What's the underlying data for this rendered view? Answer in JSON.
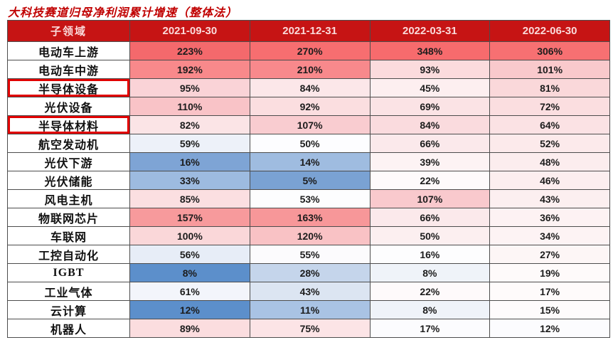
{
  "title": "大科技赛道归母净利润累计增速（整体法）",
  "colors": {
    "title_text": "#C00000",
    "header_bg": "#C61414",
    "header_text": "#FADADA",
    "grid_border": "#4d4d4d",
    "highlight_box": "#E10000",
    "scale_low": "#5A8AC6",
    "scale_mid": "#FCFCFF",
    "scale_high": "#F8696B"
  },
  "table": {
    "header": {
      "label_col": "子领域",
      "date_cols": [
        "2021-09-30",
        "2021-12-31",
        "2022-03-31",
        "2022-06-30"
      ]
    },
    "rows": [
      {
        "label": "电动车上游",
        "highlight": false,
        "cells": [
          {
            "v": "223%",
            "bg": "#F4696C"
          },
          {
            "v": "270%",
            "bg": "#F76E70"
          },
          {
            "v": "348%",
            "bg": "#F76B6D"
          },
          {
            "v": "306%",
            "bg": "#F77072"
          }
        ]
      },
      {
        "label": "电动车中游",
        "highlight": false,
        "cells": [
          {
            "v": "192%",
            "bg": "#F8898B"
          },
          {
            "v": "210%",
            "bg": "#F8898C"
          },
          {
            "v": "93%",
            "bg": "#FBDBDD"
          },
          {
            "v": "101%",
            "bg": "#F9C9CC"
          }
        ]
      },
      {
        "label": "半导体设备",
        "highlight": true,
        "cells": [
          {
            "v": "95%",
            "bg": "#FAD3D7"
          },
          {
            "v": "84%",
            "bg": "#FCE7E9"
          },
          {
            "v": "45%",
            "bg": "#FDEFF0"
          },
          {
            "v": "81%",
            "bg": "#FAD8DA"
          }
        ]
      },
      {
        "label": "光伏设备",
        "highlight": false,
        "cells": [
          {
            "v": "110%",
            "bg": "#F9C3C7"
          },
          {
            "v": "92%",
            "bg": "#FBDEE0"
          },
          {
            "v": "69%",
            "bg": "#FBE3E5"
          },
          {
            "v": "72%",
            "bg": "#FBDEE0"
          }
        ]
      },
      {
        "label": "半导体材料",
        "highlight": true,
        "cells": [
          {
            "v": "82%",
            "bg": "#FBE4E6"
          },
          {
            "v": "107%",
            "bg": "#F9CCD0"
          },
          {
            "v": "84%",
            "bg": "#FADBDE"
          },
          {
            "v": "64%",
            "bg": "#FBE2E4"
          }
        ]
      },
      {
        "label": "航空发动机",
        "highlight": false,
        "cells": [
          {
            "v": "59%",
            "bg": "#EDF1F9"
          },
          {
            "v": "50%",
            "bg": "#FDFDFF"
          },
          {
            "v": "66%",
            "bg": "#FBE9EB"
          },
          {
            "v": "52%",
            "bg": "#FCEAEB"
          }
        ]
      },
      {
        "label": "光伏下游",
        "highlight": false,
        "cells": [
          {
            "v": "16%",
            "bg": "#7EA4D5"
          },
          {
            "v": "14%",
            "bg": "#9FBCE0"
          },
          {
            "v": "39%",
            "bg": "#FDF3F4"
          },
          {
            "v": "48%",
            "bg": "#FCEDEE"
          }
        ]
      },
      {
        "label": "光伏储能",
        "highlight": false,
        "cells": [
          {
            "v": "33%",
            "bg": "#9DBBE0"
          },
          {
            "v": "5%",
            "bg": "#7AA2D3"
          },
          {
            "v": "22%",
            "bg": "#FEFAFB"
          },
          {
            "v": "46%",
            "bg": "#FCEEEF"
          }
        ]
      },
      {
        "label": "风电主机",
        "highlight": false,
        "cells": [
          {
            "v": "85%",
            "bg": "#FBDFE1"
          },
          {
            "v": "53%",
            "bg": "#FDFDFE"
          },
          {
            "v": "107%",
            "bg": "#F9C9CD"
          },
          {
            "v": "43%",
            "bg": "#FCEFF0"
          }
        ]
      },
      {
        "label": "物联网芯片",
        "highlight": false,
        "cells": [
          {
            "v": "157%",
            "bg": "#F79A9C"
          },
          {
            "v": "163%",
            "bg": "#F79799"
          },
          {
            "v": "66%",
            "bg": "#FBE9EB"
          },
          {
            "v": "36%",
            "bg": "#FDF2F3"
          }
        ]
      },
      {
        "label": "车联网",
        "highlight": false,
        "cells": [
          {
            "v": "100%",
            "bg": "#FAD7D9"
          },
          {
            "v": "120%",
            "bg": "#F9C2C5"
          },
          {
            "v": "50%",
            "bg": "#FCEFF0"
          },
          {
            "v": "34%",
            "bg": "#FDF3F4"
          }
        ]
      },
      {
        "label": "工控自动化",
        "highlight": false,
        "cells": [
          {
            "v": "56%",
            "bg": "#E7EDF7"
          },
          {
            "v": "55%",
            "bg": "#FCFBFD"
          },
          {
            "v": "16%",
            "bg": "#FDFDFE"
          },
          {
            "v": "27%",
            "bg": "#FDF6F6"
          }
        ]
      },
      {
        "label": "IGBT",
        "highlight": false,
        "cells": [
          {
            "v": "8%",
            "bg": "#5C8FCB"
          },
          {
            "v": "28%",
            "bg": "#C5D5EB"
          },
          {
            "v": "8%",
            "bg": "#EFF3F9"
          },
          {
            "v": "19%",
            "bg": "#FEFAFA"
          }
        ]
      },
      {
        "label": "工业气体",
        "highlight": false,
        "cells": [
          {
            "v": "61%",
            "bg": "#F3F5FB"
          },
          {
            "v": "43%",
            "bg": "#DCE5F2"
          },
          {
            "v": "22%",
            "bg": "#FEFAFB"
          },
          {
            "v": "17%",
            "bg": "#FEFBFB"
          }
        ]
      },
      {
        "label": "云计算",
        "highlight": false,
        "cells": [
          {
            "v": "12%",
            "bg": "#5C8FCB"
          },
          {
            "v": "11%",
            "bg": "#A9C3E4"
          },
          {
            "v": "8%",
            "bg": "#EFF3F9"
          },
          {
            "v": "15%",
            "bg": "#FEFBFC"
          }
        ]
      },
      {
        "label": "机器人",
        "highlight": false,
        "cells": [
          {
            "v": "89%",
            "bg": "#FBDDDF"
          },
          {
            "v": "75%",
            "bg": "#FCE4E6"
          },
          {
            "v": "17%",
            "bg": "#FCFCFE"
          },
          {
            "v": "12%",
            "bg": "#FCFCFE"
          }
        ]
      }
    ]
  },
  "chart_data": {
    "type": "heatmap",
    "title": "大科技赛道归母净利润累计增速（整体法）",
    "rows": [
      "电动车上游",
      "电动车中游",
      "半导体设备",
      "光伏设备",
      "半导体材料",
      "航空发动机",
      "光伏下游",
      "光伏储能",
      "风电主机",
      "物联网芯片",
      "车联网",
      "工控自动化",
      "IGBT",
      "工业气体",
      "云计算",
      "机器人"
    ],
    "columns": [
      "2021-09-30",
      "2021-12-31",
      "2022-03-31",
      "2022-06-30"
    ],
    "values_pct": [
      [
        223,
        270,
        348,
        306
      ],
      [
        192,
        210,
        93,
        101
      ],
      [
        95,
        84,
        45,
        81
      ],
      [
        110,
        92,
        69,
        72
      ],
      [
        82,
        107,
        84,
        64
      ],
      [
        59,
        50,
        66,
        52
      ],
      [
        16,
        14,
        39,
        48
      ],
      [
        33,
        5,
        22,
        46
      ],
      [
        85,
        53,
        107,
        43
      ],
      [
        157,
        163,
        66,
        36
      ],
      [
        100,
        120,
        50,
        34
      ],
      [
        56,
        55,
        16,
        27
      ],
      [
        8,
        28,
        8,
        19
      ],
      [
        61,
        43,
        22,
        17
      ],
      [
        12,
        11,
        8,
        15
      ],
      [
        89,
        75,
        17,
        12
      ]
    ],
    "unit": "%",
    "color_scale": {
      "low": "#5A8AC6",
      "mid": "#FCFCFF",
      "high": "#F8696B"
    },
    "highlighted_rows": [
      "半导体设备",
      "半导体材料"
    ],
    "legend_position": "none",
    "grid": true
  }
}
